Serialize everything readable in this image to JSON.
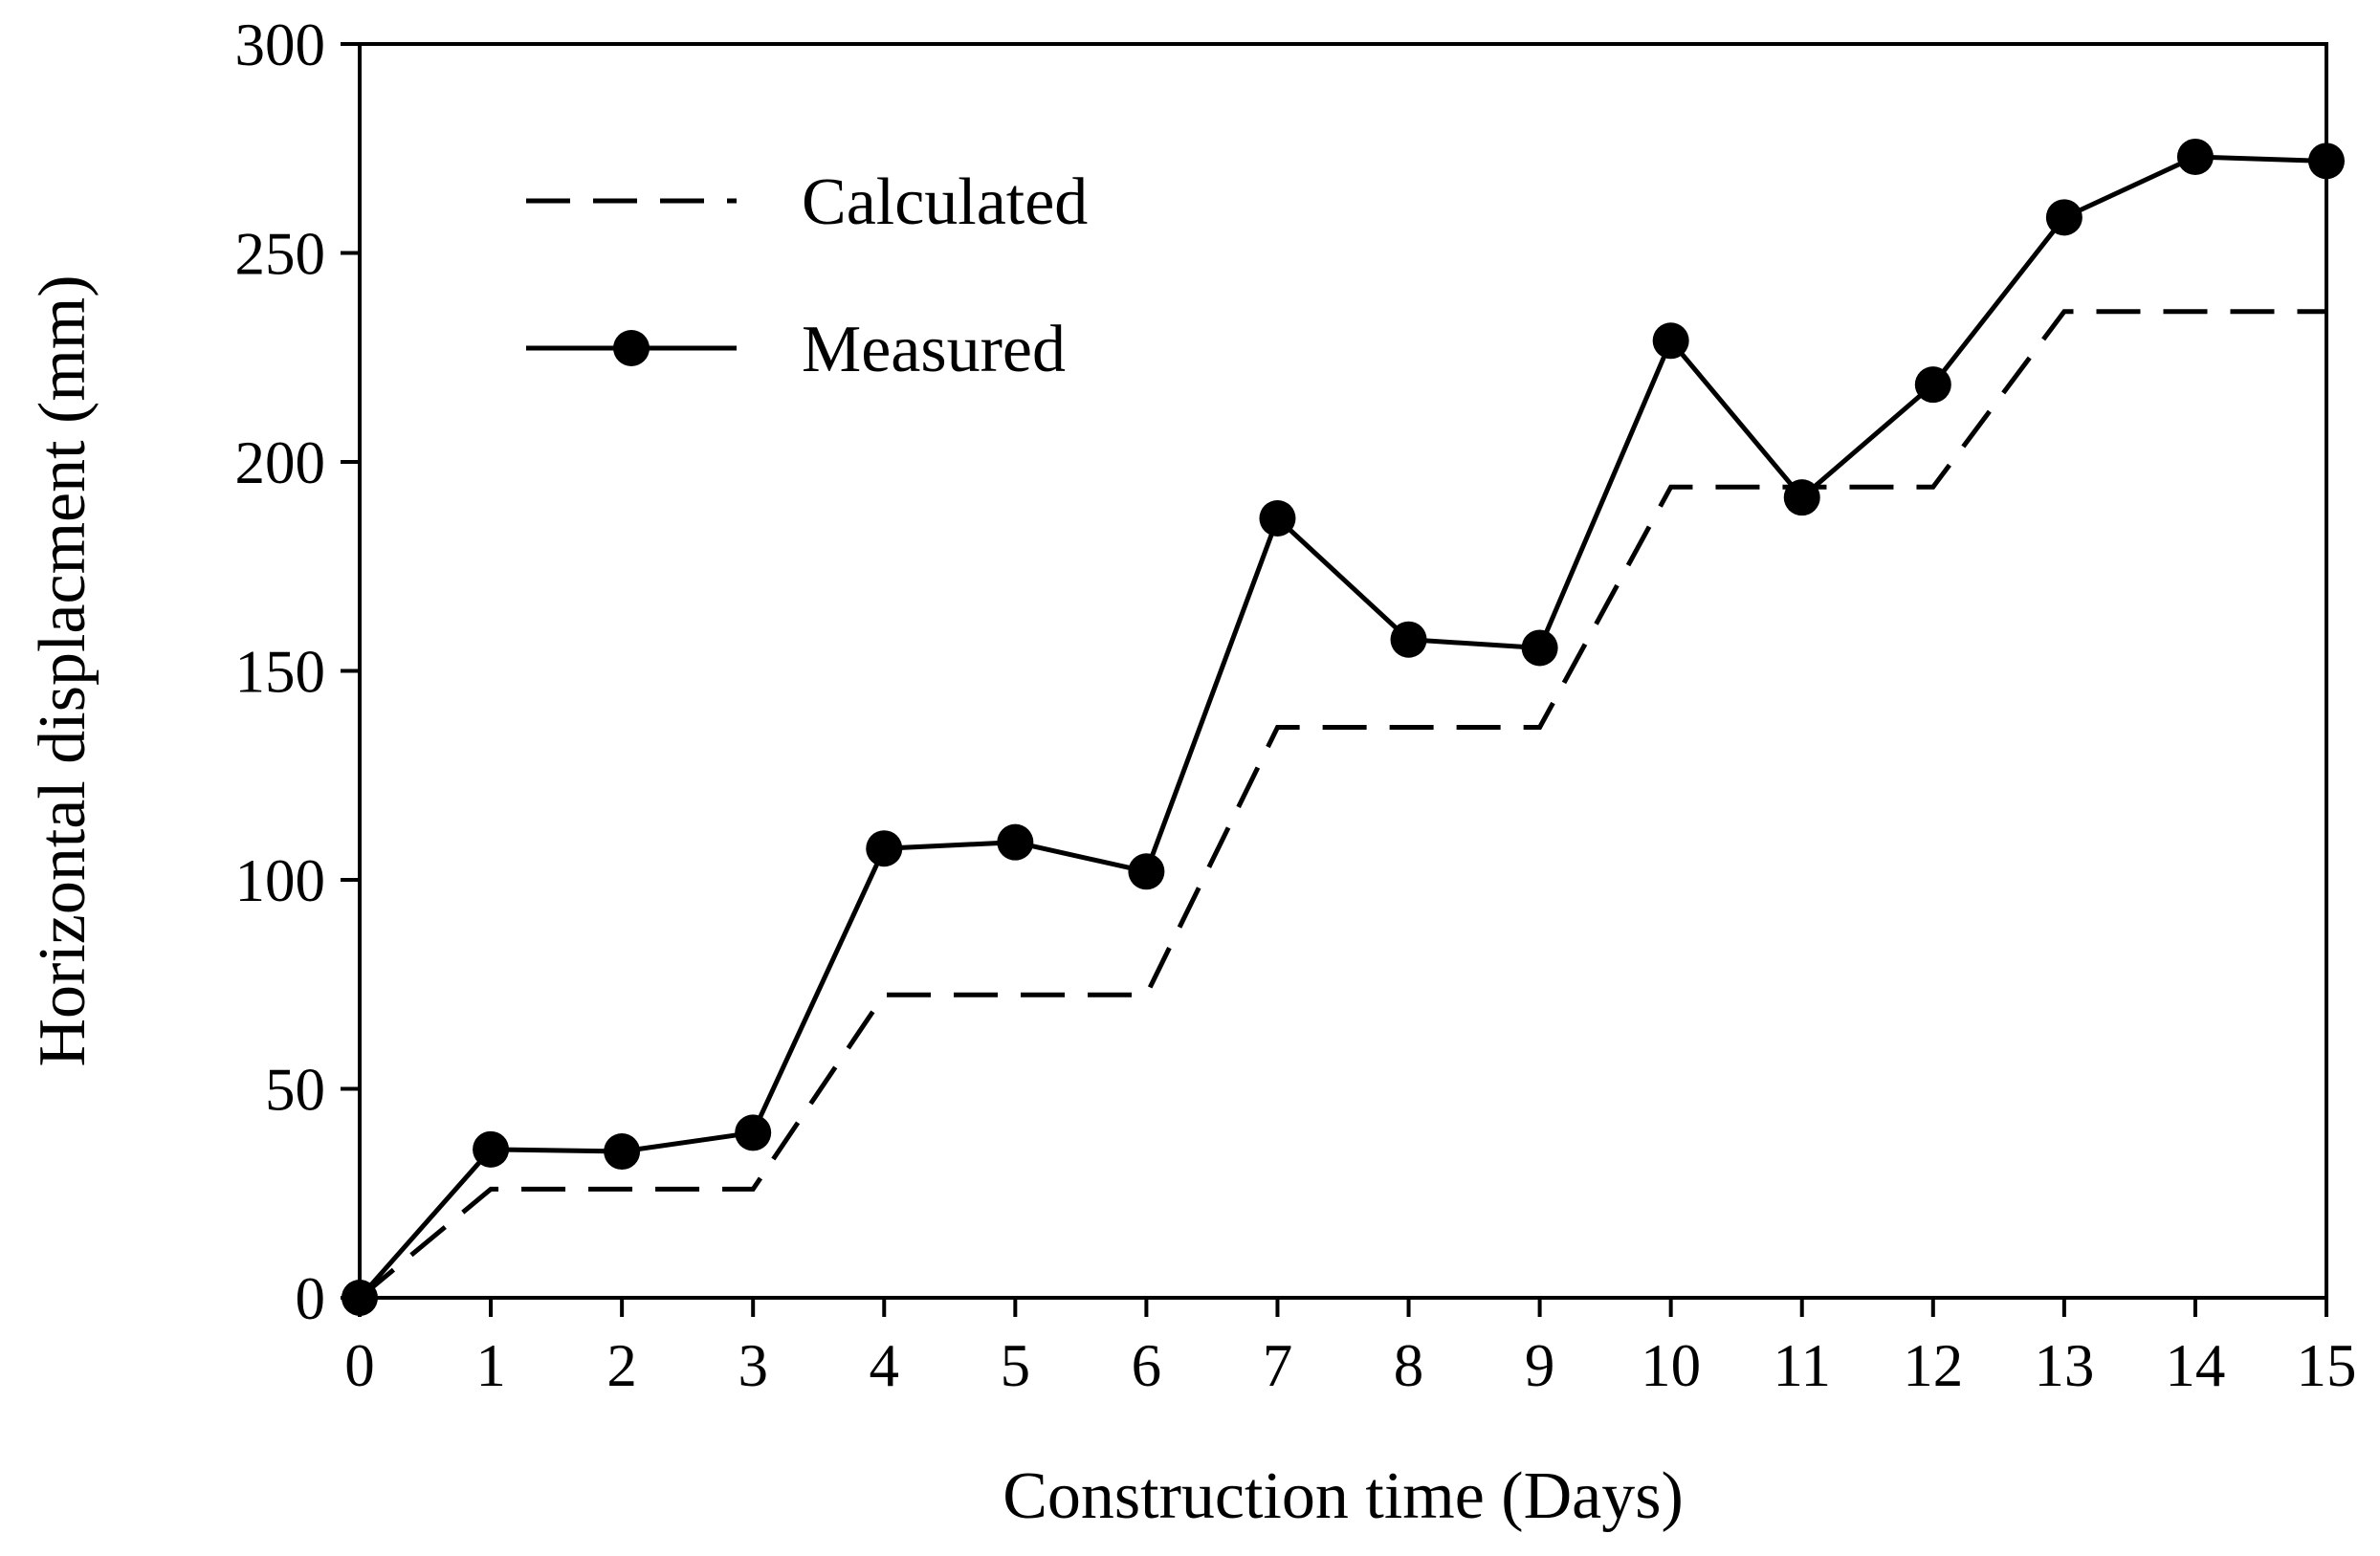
{
  "chart_data": {
    "type": "line",
    "title": "",
    "xlabel": "Construction time (Days)",
    "ylabel": "Horizontal displacment  (mm)",
    "xlim": [
      0,
      15
    ],
    "ylim": [
      0,
      300
    ],
    "x_ticks": [
      0,
      1,
      2,
      3,
      4,
      5,
      6,
      7,
      8,
      9,
      10,
      11,
      12,
      13,
      14,
      15
    ],
    "y_ticks": [
      0,
      50,
      100,
      150,
      200,
      250,
      300
    ],
    "grid": false,
    "legend_position": "top-left",
    "series": [
      {
        "name": "Calculated",
        "style": "dashed",
        "marker": "none",
        "color": "#000000",
        "x": [
          0,
          1,
          2,
          3,
          4,
          5,
          6,
          7,
          8,
          9,
          10,
          11,
          12,
          13,
          14,
          15
        ],
        "y": [
          0,
          26,
          26,
          26,
          72.5,
          72.5,
          72.5,
          136.5,
          136.5,
          136.5,
          194,
          194,
          194,
          236,
          236,
          236
        ]
      },
      {
        "name": "Measured",
        "style": "solid",
        "marker": "circle",
        "color": "#000000",
        "x": [
          0,
          1,
          2,
          3,
          4,
          5,
          6,
          7,
          8,
          9,
          10,
          11,
          12,
          13,
          14,
          15
        ],
        "y": [
          0,
          35.5,
          35,
          39.5,
          107.5,
          109,
          102,
          186.5,
          157.5,
          155.5,
          229,
          191.5,
          218.5,
          258.5,
          273,
          272
        ]
      }
    ]
  }
}
